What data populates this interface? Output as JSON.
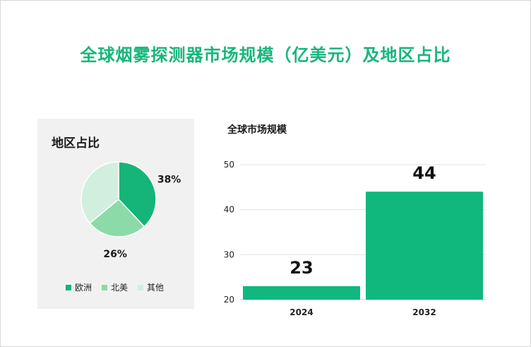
{
  "title": "全球烟雾探测器市场规模（亿美元）及地区占比",
  "colors": {
    "accent": "#17b67a",
    "europe": "#15b57a",
    "north_america": "#8cdaa8",
    "other": "#d1efde",
    "bar": "#10b87d"
  },
  "chart_data": [
    {
      "type": "pie",
      "title": "地区占比",
      "slices": [
        {
          "label": "欧洲",
          "value": 38,
          "display": "38%"
        },
        {
          "label": "北美",
          "value": 26,
          "display": "26%"
        },
        {
          "label": "其他",
          "value": 36,
          "display": ""
        }
      ],
      "legend": [
        "欧洲",
        "北美",
        "其他"
      ],
      "legend_position": "bottom"
    },
    {
      "type": "bar",
      "title": "全球市场规模",
      "categories": [
        "2024",
        "2032"
      ],
      "values": [
        23,
        44
      ],
      "data_labels": [
        "23",
        "44"
      ],
      "yticks": [
        "20",
        "30",
        "40",
        "50"
      ],
      "ylim": [
        20,
        50
      ],
      "grid": true
    }
  ]
}
